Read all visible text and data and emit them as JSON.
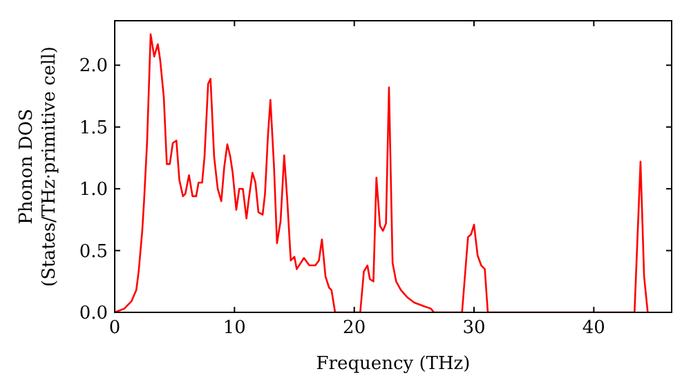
{
  "chart_data": {
    "type": "line",
    "xlabel": "Frequency (THz)",
    "ylabel": "Phonon DOS\n(States/THz·primitive cell)",
    "xlim": [
      0,
      46.5
    ],
    "xticks": [
      0,
      10,
      20,
      30,
      40
    ],
    "ylim": [
      0,
      2.36
    ],
    "yticks": [
      {
        "value": 0,
        "label": "0.0"
      },
      {
        "value": 0.5,
        "label": "0.5"
      },
      {
        "value": 1,
        "label": "1.0"
      },
      {
        "value": 1.5,
        "label": "1.5"
      },
      {
        "value": 2,
        "label": "2.0"
      }
    ],
    "grid": false,
    "marker": "none",
    "line_style": "solid",
    "series": [
      {
        "color": "#ff0000",
        "x": [
          0,
          0.8,
          1.4,
          1.8,
          2.0,
          2.3,
          2.45,
          2.7,
          3.0,
          3.3,
          3.6,
          3.8,
          4.1,
          4.35,
          4.6,
          4.85,
          5.15,
          5.4,
          5.7,
          5.9,
          6.2,
          6.5,
          6.8,
          7.0,
          7.3,
          7.5,
          7.8,
          8.0,
          8.3,
          8.6,
          8.9,
          9.15,
          9.4,
          9.65,
          9.85,
          10.15,
          10.4,
          10.7,
          11.0,
          11.2,
          11.5,
          11.75,
          12.0,
          12.35,
          12.55,
          12.8,
          13.0,
          13.3,
          13.55,
          13.85,
          14.15,
          14.4,
          14.7,
          15.0,
          15.2,
          15.8,
          16.25,
          16.75,
          17.05,
          17.3,
          17.6,
          17.9,
          18.1,
          18.4,
          20.5,
          20.8,
          21.1,
          21.3,
          21.6,
          21.85,
          22.15,
          22.4,
          22.65,
          22.9,
          23.2,
          23.5,
          23.9,
          24.45,
          25.0,
          25.8,
          26.4,
          26.65,
          29.0,
          29.5,
          29.75,
          30.0,
          30.3,
          30.6,
          30.9,
          31.15,
          43.4,
          43.9,
          44.2,
          44.5
        ],
        "values": [
          0,
          0.03,
          0.09,
          0.18,
          0.33,
          0.66,
          0.9,
          1.37,
          2.25,
          2.07,
          2.17,
          2.04,
          1.74,
          1.2,
          1.2,
          1.37,
          1.39,
          1.07,
          0.94,
          0.96,
          1.11,
          0.94,
          0.94,
          1.05,
          1.05,
          1.26,
          1.85,
          1.89,
          1.26,
          1.0,
          0.9,
          1.18,
          1.36,
          1.26,
          1.13,
          0.83,
          1.0,
          1.0,
          0.76,
          0.92,
          1.13,
          1.05,
          0.81,
          0.79,
          0.96,
          1.44,
          1.72,
          1.18,
          0.56,
          0.74,
          1.27,
          0.92,
          0.42,
          0.45,
          0.35,
          0.44,
          0.38,
          0.38,
          0.42,
          0.59,
          0.29,
          0.2,
          0.18,
          0,
          0,
          0.33,
          0.38,
          0.27,
          0.25,
          1.09,
          0.7,
          0.66,
          0.72,
          1.82,
          0.4,
          0.25,
          0.18,
          0.12,
          0.08,
          0.05,
          0.03,
          0,
          0,
          0.61,
          0.63,
          0.71,
          0.46,
          0.38,
          0.35,
          0,
          0,
          1.22,
          0.29,
          0
        ]
      }
    ]
  }
}
